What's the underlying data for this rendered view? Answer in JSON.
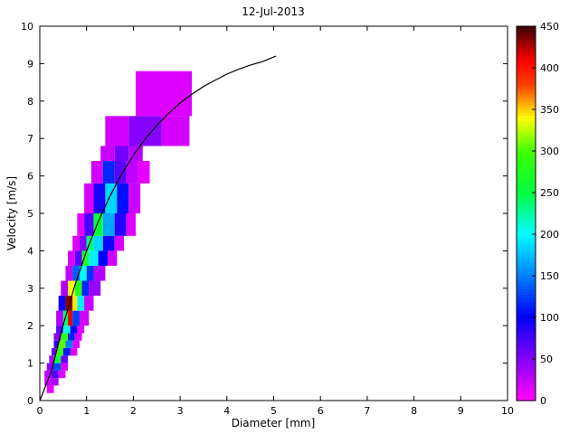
{
  "figure": {
    "background": "#ffffff",
    "axes_color": "#000000",
    "curve_color": "#000000"
  },
  "chart_data": {
    "type": "heatmap",
    "title": "12-Jul-2013",
    "xlabel": "Diameter [mm]",
    "ylabel": "Velocity [m/s]",
    "xlim": [
      0,
      10
    ],
    "ylim": [
      0,
      10
    ],
    "xticks": [
      0,
      1,
      2,
      3,
      4,
      5,
      6,
      7,
      8,
      9,
      10
    ],
    "yticks": [
      0,
      1,
      2,
      3,
      4,
      5,
      6,
      7,
      8,
      9,
      10
    ],
    "grid": false,
    "legend": "none",
    "colorbar": {
      "position": "right",
      "min": 0,
      "max": 450,
      "ticks": [
        0,
        50,
        100,
        150,
        200,
        250,
        300,
        350,
        400,
        450
      ],
      "stops": [
        [
          0,
          "#ff00ff"
        ],
        [
          100,
          "#0000ff"
        ],
        [
          150,
          "#0080ff"
        ],
        [
          200,
          "#00ffff"
        ],
        [
          250,
          "#00ff40"
        ],
        [
          300,
          "#40ff00"
        ],
        [
          340,
          "#ffff00"
        ],
        [
          380,
          "#ff4000"
        ],
        [
          410,
          "#ff0000"
        ],
        [
          450,
          "#400000"
        ]
      ]
    },
    "cells": [
      [
        0.15,
        0.3,
        0.2,
        0.4,
        10
      ],
      [
        0.1,
        0.25,
        0.4,
        0.6,
        18
      ],
      [
        0.25,
        0.4,
        0.4,
        0.6,
        35
      ],
      [
        0.1,
        0.25,
        0.6,
        0.8,
        25
      ],
      [
        0.25,
        0.4,
        0.6,
        0.8,
        70
      ],
      [
        0.4,
        0.55,
        0.6,
        0.8,
        12
      ],
      [
        0.15,
        0.3,
        0.8,
        1.0,
        45
      ],
      [
        0.3,
        0.45,
        0.8,
        1.0,
        130
      ],
      [
        0.45,
        0.6,
        0.8,
        1.0,
        15
      ],
      [
        0.2,
        0.3,
        1.0,
        1.2,
        35
      ],
      [
        0.3,
        0.45,
        1.0,
        1.2,
        260
      ],
      [
        0.45,
        0.6,
        1.0,
        1.2,
        60
      ],
      [
        0.25,
        0.35,
        1.2,
        1.4,
        55
      ],
      [
        0.35,
        0.5,
        1.2,
        1.4,
        295
      ],
      [
        0.5,
        0.65,
        1.2,
        1.4,
        110
      ],
      [
        0.65,
        0.8,
        1.2,
        1.4,
        15
      ],
      [
        0.3,
        0.4,
        1.4,
        1.6,
        85
      ],
      [
        0.4,
        0.55,
        1.4,
        1.6,
        305
      ],
      [
        0.55,
        0.7,
        1.4,
        1.6,
        150
      ],
      [
        0.7,
        0.85,
        1.4,
        1.6,
        12
      ],
      [
        0.3,
        0.45,
        1.6,
        1.8,
        45
      ],
      [
        0.45,
        0.6,
        1.6,
        1.8,
        285
      ],
      [
        0.6,
        0.75,
        1.6,
        1.8,
        115
      ],
      [
        0.75,
        0.9,
        1.6,
        1.8,
        14
      ],
      [
        0.35,
        0.5,
        1.8,
        2.0,
        65
      ],
      [
        0.5,
        0.65,
        1.8,
        2.0,
        205
      ],
      [
        0.65,
        0.8,
        1.8,
        2.0,
        95
      ],
      [
        0.8,
        0.95,
        1.8,
        2.0,
        12
      ],
      [
        0.35,
        0.5,
        2.0,
        2.4,
        30
      ],
      [
        0.5,
        0.6,
        2.0,
        2.4,
        240
      ],
      [
        0.6,
        0.7,
        2.0,
        2.4,
        415
      ],
      [
        0.7,
        0.85,
        2.0,
        2.4,
        125
      ],
      [
        0.85,
        1.05,
        2.0,
        2.4,
        18
      ],
      [
        0.4,
        0.55,
        2.4,
        2.8,
        95
      ],
      [
        0.55,
        0.7,
        2.4,
        2.8,
        435
      ],
      [
        0.7,
        0.8,
        2.4,
        2.8,
        345
      ],
      [
        0.8,
        0.95,
        2.4,
        2.8,
        195
      ],
      [
        0.95,
        1.15,
        2.4,
        2.8,
        22
      ],
      [
        0.45,
        0.6,
        2.8,
        3.2,
        30
      ],
      [
        0.6,
        0.75,
        2.8,
        3.2,
        340
      ],
      [
        0.75,
        0.9,
        2.8,
        3.2,
        280
      ],
      [
        0.9,
        1.05,
        2.8,
        3.2,
        115
      ],
      [
        1.05,
        1.3,
        2.8,
        3.2,
        40
      ],
      [
        0.55,
        0.7,
        3.2,
        3.6,
        25
      ],
      [
        0.7,
        0.85,
        3.2,
        3.6,
        135
      ],
      [
        0.85,
        1.0,
        3.2,
        3.6,
        205
      ],
      [
        1.0,
        1.15,
        3.2,
        3.6,
        120
      ],
      [
        1.15,
        1.4,
        3.2,
        3.6,
        30
      ],
      [
        0.6,
        0.75,
        3.6,
        4.0,
        15
      ],
      [
        0.75,
        0.9,
        3.6,
        4.0,
        65
      ],
      [
        0.9,
        1.05,
        3.6,
        4.0,
        270
      ],
      [
        1.05,
        1.25,
        3.6,
        4.0,
        195
      ],
      [
        1.25,
        1.45,
        3.6,
        4.0,
        100
      ],
      [
        1.45,
        1.65,
        3.6,
        4.0,
        18
      ],
      [
        0.7,
        0.85,
        4.0,
        4.4,
        12
      ],
      [
        0.85,
        1.0,
        4.0,
        4.4,
        50
      ],
      [
        1.0,
        1.15,
        4.0,
        4.4,
        235
      ],
      [
        1.15,
        1.35,
        4.0,
        4.4,
        185
      ],
      [
        1.35,
        1.6,
        4.0,
        4.4,
        95
      ],
      [
        1.6,
        1.8,
        4.0,
        4.4,
        15
      ],
      [
        0.8,
        0.95,
        4.4,
        5.0,
        10
      ],
      [
        0.95,
        1.15,
        4.4,
        5.0,
        70
      ],
      [
        1.15,
        1.35,
        4.4,
        5.0,
        255
      ],
      [
        1.35,
        1.6,
        4.4,
        5.0,
        165
      ],
      [
        1.6,
        1.85,
        4.4,
        5.0,
        85
      ],
      [
        1.85,
        2.05,
        4.4,
        5.0,
        12
      ],
      [
        0.95,
        1.15,
        5.0,
        5.8,
        15
      ],
      [
        1.15,
        1.4,
        5.0,
        5.8,
        90
      ],
      [
        1.4,
        1.65,
        5.0,
        5.8,
        185
      ],
      [
        1.65,
        1.9,
        5.0,
        5.8,
        105
      ],
      [
        1.9,
        2.15,
        5.0,
        5.8,
        20
      ],
      [
        1.1,
        1.35,
        5.8,
        6.4,
        18
      ],
      [
        1.35,
        1.6,
        5.8,
        6.4,
        115
      ],
      [
        1.6,
        1.85,
        5.8,
        6.4,
        65
      ],
      [
        1.85,
        2.1,
        5.8,
        6.4,
        25
      ],
      [
        2.1,
        2.35,
        5.8,
        6.4,
        10
      ],
      [
        1.3,
        1.6,
        6.4,
        6.8,
        22
      ],
      [
        1.6,
        1.9,
        6.4,
        6.8,
        55
      ],
      [
        1.9,
        2.2,
        6.4,
        6.8,
        28
      ],
      [
        1.4,
        1.9,
        6.8,
        7.6,
        18
      ],
      [
        1.9,
        2.6,
        6.8,
        7.6,
        48
      ],
      [
        2.6,
        3.2,
        6.8,
        7.6,
        16
      ],
      [
        2.05,
        3.25,
        7.6,
        8.8,
        14
      ]
    ],
    "curve": {
      "name": "terminal-velocity-curve",
      "points": [
        [
          0,
          0
        ],
        [
          0.25,
          0.79
        ],
        [
          0.5,
          2.02
        ],
        [
          0.75,
          3.08
        ],
        [
          1.0,
          4.0
        ],
        [
          1.25,
          4.78
        ],
        [
          1.5,
          5.46
        ],
        [
          1.75,
          6.05
        ],
        [
          2.0,
          6.55
        ],
        [
          2.25,
          6.98
        ],
        [
          2.5,
          7.35
        ],
        [
          2.75,
          7.67
        ],
        [
          3.0,
          7.95
        ],
        [
          3.25,
          8.18
        ],
        [
          3.5,
          8.39
        ],
        [
          3.75,
          8.56
        ],
        [
          4.0,
          8.72
        ],
        [
          4.25,
          8.85
        ],
        [
          4.5,
          8.96
        ],
        [
          4.75,
          9.05
        ],
        [
          5.05,
          9.2
        ]
      ]
    }
  }
}
